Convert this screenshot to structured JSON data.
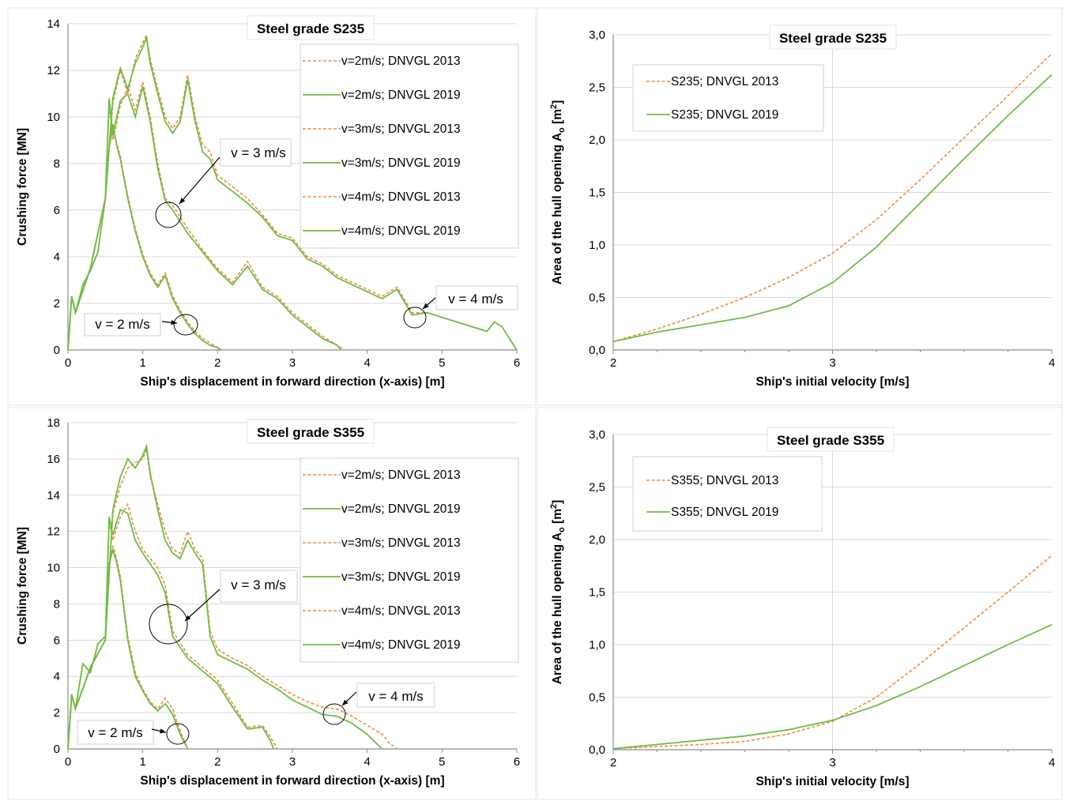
{
  "colors": {
    "orange": "#f08a3a",
    "green": "#6dbd45",
    "grid": "#d9d9d9",
    "axis": "#8c8c8c",
    "text": "#000000"
  },
  "chart_data": [
    {
      "type": "line",
      "title": "Steel grade S235",
      "xlabel": "Ship's displacement in forward direction (x-axis) [m]",
      "ylabel": "Crushing force [MN]",
      "xlim": [
        0,
        6
      ],
      "ylim": [
        0,
        14
      ],
      "xticks": [
        "0",
        "1",
        "2",
        "3",
        "4",
        "5",
        "6"
      ],
      "yticks": [
        "0",
        "2",
        "4",
        "6",
        "8",
        "10",
        "12",
        "14"
      ],
      "grid": "horizontal",
      "legend_position": "top-right",
      "annotations": [
        "v = 3 m/s",
        "v = 2 m/s",
        "v = 4 m/s"
      ],
      "series": [
        {
          "name": "v=2m/s; DNVGL 2013",
          "style": "dashed-orange",
          "x": [
            0,
            0.05,
            0.1,
            0.2,
            0.3,
            0.4,
            0.5,
            0.55,
            0.6,
            0.65,
            0.7,
            0.8,
            0.9,
            1.0,
            1.1,
            1.2,
            1.3,
            1.4,
            1.5,
            1.6,
            1.7,
            1.8,
            1.9,
            2.0,
            2.05
          ],
          "y": [
            0,
            2.3,
            1.6,
            2.8,
            3.4,
            4.2,
            6.5,
            8.7,
            9.5,
            8.9,
            8.3,
            6.6,
            5.2,
            4.1,
            3.3,
            2.8,
            3.3,
            2.3,
            1.7,
            1.2,
            0.8,
            0.5,
            0.3,
            0.1,
            0
          ]
        },
        {
          "name": "v=2m/s; DNVGL 2019",
          "style": "solid-green",
          "x": [
            0,
            0.05,
            0.1,
            0.2,
            0.3,
            0.4,
            0.5,
            0.55,
            0.6,
            0.65,
            0.7,
            0.8,
            0.9,
            1.0,
            1.1,
            1.2,
            1.3,
            1.4,
            1.5,
            1.6,
            1.7,
            1.8,
            1.9,
            2.0,
            2.05
          ],
          "y": [
            0,
            2.3,
            1.6,
            2.8,
            3.4,
            4.2,
            6.5,
            8.7,
            9.7,
            8.8,
            8.2,
            6.5,
            5.1,
            4.0,
            3.2,
            2.7,
            3.2,
            2.2,
            1.6,
            1.1,
            0.7,
            0.4,
            0.2,
            0.1,
            0
          ]
        },
        {
          "name": "v=3m/s; DNVGL 2013",
          "style": "dashed-orange",
          "x": [
            0,
            0.05,
            0.1,
            0.3,
            0.5,
            0.55,
            0.6,
            0.7,
            0.8,
            0.9,
            1.0,
            1.1,
            1.2,
            1.3,
            1.4,
            1.6,
            1.8,
            2.0,
            2.2,
            2.4,
            2.6,
            2.8,
            3.0,
            3.2,
            3.4,
            3.6,
            3.7
          ],
          "y": [
            0,
            2.3,
            1.6,
            3.5,
            6.5,
            10.5,
            9.0,
            10.5,
            11.3,
            10.3,
            11.5,
            10.0,
            8.0,
            6.5,
            6.2,
            5.2,
            4.3,
            3.5,
            2.9,
            3.8,
            2.7,
            2.3,
            1.6,
            1.1,
            0.6,
            0.2,
            0
          ]
        },
        {
          "name": "v=3m/s; DNVGL 2019",
          "style": "solid-green",
          "x": [
            0,
            0.05,
            0.1,
            0.3,
            0.5,
            0.55,
            0.6,
            0.7,
            0.8,
            0.9,
            1.0,
            1.1,
            1.2,
            1.3,
            1.4,
            1.6,
            1.8,
            2.0,
            2.2,
            2.4,
            2.6,
            2.8,
            3.0,
            3.2,
            3.4,
            3.6,
            3.65
          ],
          "y": [
            0,
            2.3,
            1.6,
            3.5,
            6.5,
            10.8,
            9.2,
            10.7,
            11.0,
            10.0,
            11.3,
            9.8,
            7.8,
            6.4,
            6.0,
            5.0,
            4.2,
            3.4,
            2.8,
            3.6,
            2.6,
            2.2,
            1.5,
            1.0,
            0.5,
            0.2,
            0
          ]
        },
        {
          "name": "v=4m/s; DNVGL 2013",
          "style": "dashed-orange",
          "x": [
            0,
            0.05,
            0.1,
            0.3,
            0.5,
            0.6,
            0.7,
            0.8,
            0.9,
            1.0,
            1.05,
            1.1,
            1.2,
            1.3,
            1.4,
            1.5,
            1.6,
            1.7,
            1.8,
            1.9,
            2.0,
            2.2,
            2.4,
            2.6,
            2.8,
            3.0,
            3.2,
            3.4,
            3.6,
            3.8,
            4.0,
            4.2,
            4.4,
            4.6,
            4.8,
            5.0,
            5.2,
            5.4,
            5.6,
            5.7,
            5.8,
            5.9,
            6.0
          ],
          "y": [
            0,
            2.3,
            1.6,
            3.5,
            6.5,
            10.6,
            12.0,
            11.0,
            12.5,
            13.2,
            13.5,
            12.5,
            11.2,
            10.0,
            9.5,
            10.0,
            11.8,
            10.0,
            8.8,
            8.5,
            7.5,
            7.0,
            6.5,
            5.8,
            5.0,
            4.8,
            4.0,
            3.7,
            3.2,
            2.9,
            2.6,
            2.3,
            2.7,
            1.6,
            1.6,
            1.4,
            1.2,
            1.0,
            0.8,
            1.2,
            1.0,
            0.5,
            0
          ]
        },
        {
          "name": "v=4m/s; DNVGL 2019",
          "style": "solid-green",
          "x": [
            0,
            0.05,
            0.1,
            0.3,
            0.5,
            0.6,
            0.7,
            0.8,
            0.9,
            1.0,
            1.05,
            1.1,
            1.2,
            1.3,
            1.4,
            1.5,
            1.6,
            1.7,
            1.8,
            1.9,
            2.0,
            2.2,
            2.4,
            2.6,
            2.8,
            3.0,
            3.2,
            3.4,
            3.6,
            3.8,
            4.0,
            4.2,
            4.4,
            4.6,
            4.8,
            5.0,
            5.2,
            5.4,
            5.6,
            5.7,
            5.8,
            5.9,
            6.0
          ],
          "y": [
            0,
            2.3,
            1.6,
            3.5,
            6.5,
            10.8,
            12.1,
            11.2,
            12.3,
            13.0,
            13.4,
            12.3,
            11.0,
            9.8,
            9.3,
            9.8,
            11.6,
            9.8,
            8.5,
            8.2,
            7.3,
            6.8,
            6.3,
            5.7,
            4.9,
            4.7,
            3.9,
            3.6,
            3.1,
            2.8,
            2.5,
            2.2,
            2.6,
            1.5,
            1.6,
            1.4,
            1.2,
            1.0,
            0.8,
            1.2,
            1.0,
            0.5,
            0
          ]
        }
      ]
    },
    {
      "type": "line",
      "title": "Steel grade S235",
      "xlabel": "Ship's initial velocity [m/s]",
      "ylabel": "Area of the hull opening A",
      "ylabel_sub": "o",
      "ylabel_unit": " [m",
      "ylabel_sup": "2",
      "ylabel_end": "]",
      "xlim": [
        2,
        4
      ],
      "ylim": [
        0,
        3
      ],
      "xticks": [
        "2",
        "3",
        "4"
      ],
      "yticks": [
        "0,0",
        "0,5",
        "1,0",
        "1,5",
        "2,0",
        "2,5",
        "3,0"
      ],
      "grid": "horizontal",
      "legend_position": "top-left",
      "series": [
        {
          "name": "S235; DNVGL 2013",
          "style": "dashed-orange",
          "x": [
            2.0,
            2.2,
            2.4,
            2.6,
            2.8,
            3.0,
            3.2,
            3.4,
            3.6,
            3.8,
            4.0
          ],
          "y": [
            0.08,
            0.2,
            0.34,
            0.5,
            0.69,
            0.92,
            1.24,
            1.62,
            2.02,
            2.42,
            2.82
          ]
        },
        {
          "name": "S235; DNVGL 2019",
          "style": "solid-green",
          "x": [
            2.0,
            2.2,
            2.4,
            2.6,
            2.8,
            3.0,
            3.2,
            3.4,
            3.6,
            3.8,
            4.0
          ],
          "y": [
            0.08,
            0.17,
            0.24,
            0.31,
            0.42,
            0.64,
            0.98,
            1.4,
            1.82,
            2.23,
            2.62
          ]
        }
      ]
    },
    {
      "type": "line",
      "title": "Steel grade S355",
      "xlabel": "Ship's displacement in forward direction (x-axis) [m]",
      "ylabel": "Crushing force [MN]",
      "xlim": [
        0,
        6
      ],
      "ylim": [
        0,
        18
      ],
      "xticks": [
        "0",
        "1",
        "2",
        "3",
        "4",
        "5",
        "6"
      ],
      "yticks": [
        "0",
        "2",
        "4",
        "6",
        "8",
        "10",
        "12",
        "14",
        "16",
        "18"
      ],
      "grid": "horizontal",
      "legend_position": "top-right",
      "annotations": [
        "v = 3 m/s",
        "v = 2 m/s",
        "v = 4 m/s"
      ],
      "series": [
        {
          "name": "v=2m/s; DNVGL 2013",
          "style": "dashed-orange",
          "x": [
            0,
            0.05,
            0.1,
            0.2,
            0.3,
            0.4,
            0.5,
            0.55,
            0.6,
            0.65,
            0.7,
            0.8,
            0.9,
            1.0,
            1.1,
            1.2,
            1.3,
            1.4,
            1.5,
            1.55,
            1.6
          ],
          "y": [
            0,
            3.0,
            2.2,
            4.7,
            4.2,
            5.8,
            6.2,
            10.0,
            11.2,
            10.5,
            9.5,
            6.2,
            4.2,
            3.3,
            2.6,
            2.2,
            2.8,
            2.2,
            1.0,
            0.5,
            0
          ]
        },
        {
          "name": "v=2m/s; DNVGL 2019",
          "style": "solid-green",
          "x": [
            0,
            0.05,
            0.1,
            0.2,
            0.3,
            0.4,
            0.5,
            0.55,
            0.6,
            0.65,
            0.7,
            0.8,
            0.9,
            1.0,
            1.1,
            1.2,
            1.3,
            1.4,
            1.5,
            1.55,
            1.6
          ],
          "y": [
            0,
            3.0,
            2.2,
            4.7,
            4.2,
            5.8,
            6.2,
            10.2,
            11.0,
            10.3,
            9.3,
            6.0,
            4.0,
            3.2,
            2.5,
            2.1,
            2.5,
            1.9,
            0.8,
            0.4,
            0
          ]
        },
        {
          "name": "v=3m/s; DNVGL 2013",
          "style": "dashed-orange",
          "x": [
            0,
            0.05,
            0.1,
            0.3,
            0.5,
            0.55,
            0.6,
            0.7,
            0.8,
            0.9,
            1.0,
            1.1,
            1.2,
            1.3,
            1.4,
            1.6,
            1.8,
            2.0,
            2.2,
            2.4,
            2.6,
            2.7,
            2.8
          ],
          "y": [
            0,
            3.0,
            2.2,
            4.5,
            6.0,
            12.5,
            11.5,
            12.8,
            13.5,
            12.0,
            11.0,
            10.5,
            10.0,
            9.0,
            6.5,
            5.2,
            4.5,
            3.8,
            2.5,
            1.2,
            1.3,
            0.7,
            0
          ]
        },
        {
          "name": "v=3m/s; DNVGL 2019",
          "style": "solid-green",
          "x": [
            0,
            0.05,
            0.1,
            0.3,
            0.5,
            0.55,
            0.6,
            0.7,
            0.8,
            0.9,
            1.0,
            1.1,
            1.2,
            1.3,
            1.4,
            1.6,
            1.8,
            2.0,
            2.2,
            2.4,
            2.6,
            2.7,
            2.75
          ],
          "y": [
            0,
            3.0,
            2.2,
            4.5,
            6.0,
            12.8,
            11.8,
            13.2,
            13.0,
            11.5,
            10.8,
            10.2,
            9.6,
            8.6,
            6.2,
            5.0,
            4.3,
            3.6,
            2.3,
            1.1,
            1.2,
            0.5,
            0
          ]
        },
        {
          "name": "v=4m/s; DNVGL 2013",
          "style": "dashed-orange",
          "x": [
            0,
            0.05,
            0.1,
            0.3,
            0.5,
            0.6,
            0.7,
            0.8,
            0.9,
            1.0,
            1.05,
            1.1,
            1.2,
            1.3,
            1.4,
            1.5,
            1.6,
            1.7,
            1.8,
            1.9,
            2.0,
            2.2,
            2.4,
            2.6,
            2.8,
            3.0,
            3.2,
            3.4,
            3.6,
            3.8,
            4.0,
            4.2,
            4.3,
            4.4
          ],
          "y": [
            0,
            3.0,
            2.2,
            4.5,
            6.0,
            13.0,
            14.5,
            15.5,
            15.8,
            16.0,
            16.5,
            15.0,
            13.5,
            12.0,
            11.0,
            10.8,
            12.0,
            11.0,
            10.5,
            6.5,
            5.5,
            5.0,
            4.6,
            4.0,
            3.5,
            3.0,
            2.6,
            2.3,
            2.2,
            1.8,
            1.3,
            0.8,
            0.3,
            0
          ]
        },
        {
          "name": "v=4m/s; DNVGL 2019",
          "style": "solid-green",
          "x": [
            0,
            0.05,
            0.1,
            0.3,
            0.5,
            0.6,
            0.7,
            0.8,
            0.9,
            1.0,
            1.05,
            1.1,
            1.2,
            1.3,
            1.4,
            1.5,
            1.6,
            1.7,
            1.8,
            1.9,
            2.0,
            2.2,
            2.4,
            2.6,
            2.8,
            3.0,
            3.2,
            3.4,
            3.6,
            3.8,
            4.0,
            4.1,
            4.2
          ],
          "y": [
            0,
            3.0,
            2.2,
            4.5,
            6.0,
            13.2,
            15.0,
            16.0,
            15.5,
            16.2,
            16.7,
            15.2,
            13.2,
            11.5,
            10.8,
            10.5,
            11.5,
            10.8,
            10.2,
            6.2,
            5.2,
            4.8,
            4.4,
            3.8,
            3.3,
            2.7,
            2.3,
            1.9,
            1.8,
            1.4,
            0.8,
            0.4,
            0
          ]
        }
      ]
    },
    {
      "type": "line",
      "title": "Steel grade S355",
      "xlabel": "Ship's initial velocity [m/s]",
      "ylabel": "Area of the hull opening A",
      "ylabel_sub": "o",
      "ylabel_unit": " [m",
      "ylabel_sup": "2",
      "ylabel_end": "]",
      "xlim": [
        2,
        4
      ],
      "ylim": [
        0,
        3
      ],
      "xticks": [
        "2",
        "3",
        "4"
      ],
      "yticks": [
        "0,0",
        "0,5",
        "1,0",
        "1,5",
        "2,0",
        "2,5",
        "3,0"
      ],
      "grid": "horizontal",
      "legend_position": "top-left",
      "series": [
        {
          "name": "S355; DNVGL 2013",
          "style": "dashed-orange",
          "x": [
            2.0,
            2.2,
            2.4,
            2.6,
            2.8,
            3.0,
            3.2,
            3.4,
            3.6,
            3.8,
            4.0
          ],
          "y": [
            0.01,
            0.03,
            0.05,
            0.08,
            0.15,
            0.27,
            0.5,
            0.82,
            1.16,
            1.5,
            1.85
          ]
        },
        {
          "name": "S355; DNVGL 2019",
          "style": "solid-green",
          "x": [
            2.0,
            2.2,
            2.4,
            2.6,
            2.8,
            3.0,
            3.2,
            3.4,
            3.6,
            3.8,
            4.0
          ],
          "y": [
            0.01,
            0.05,
            0.09,
            0.13,
            0.19,
            0.28,
            0.42,
            0.6,
            0.8,
            1.0,
            1.19
          ]
        }
      ]
    }
  ]
}
